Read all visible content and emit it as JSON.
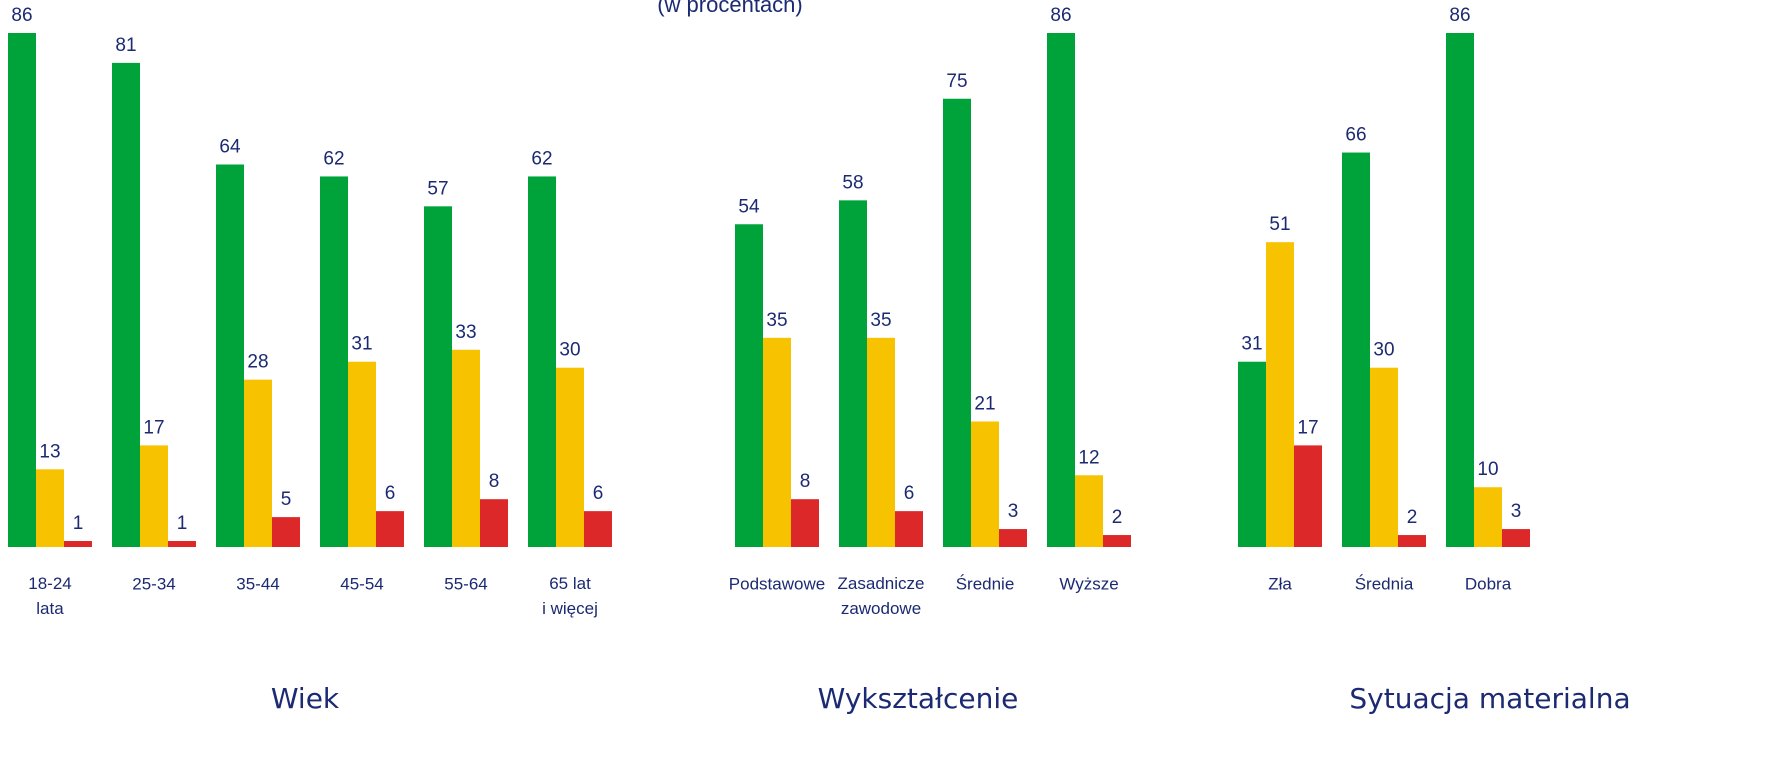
{
  "subtitle": "(w procentach)",
  "chart_data": [
    {
      "type": "bar",
      "xlabel": "Wiek",
      "categories": [
        "18-24\nlata",
        "25-34",
        "35-44",
        "45-54",
        "55-64",
        "65 lat\ni więcej"
      ],
      "series": [
        {
          "color": "#00a33a",
          "values": [
            86,
            81,
            64,
            62,
            57,
            62
          ]
        },
        {
          "color": "#f7c200",
          "values": [
            13,
            17,
            28,
            31,
            33,
            30
          ]
        },
        {
          "color": "#dc2828",
          "values": [
            1,
            1,
            5,
            6,
            8,
            6
          ]
        }
      ]
    },
    {
      "type": "bar",
      "xlabel": "Wykształcenie",
      "categories": [
        "Podstawowe",
        "Zasadnicze\nzawodowe",
        "Średnie",
        "Wyższe"
      ],
      "series": [
        {
          "color": "#00a33a",
          "values": [
            54,
            58,
            75,
            86
          ]
        },
        {
          "color": "#f7c200",
          "values": [
            35,
            35,
            21,
            12
          ]
        },
        {
          "color": "#dc2828",
          "values": [
            8,
            6,
            3,
            2
          ]
        }
      ]
    },
    {
      "type": "bar",
      "xlabel": "Sytuacja materialna",
      "categories": [
        "Zła",
        "Średnia",
        "Dobra"
      ],
      "series": [
        {
          "color": "#00a33a",
          "values": [
            31,
            66,
            86
          ]
        },
        {
          "color": "#f7c200",
          "values": [
            51,
            30,
            10
          ]
        },
        {
          "color": "#dc2828",
          "values": [
            17,
            2,
            3
          ]
        }
      ]
    }
  ]
}
